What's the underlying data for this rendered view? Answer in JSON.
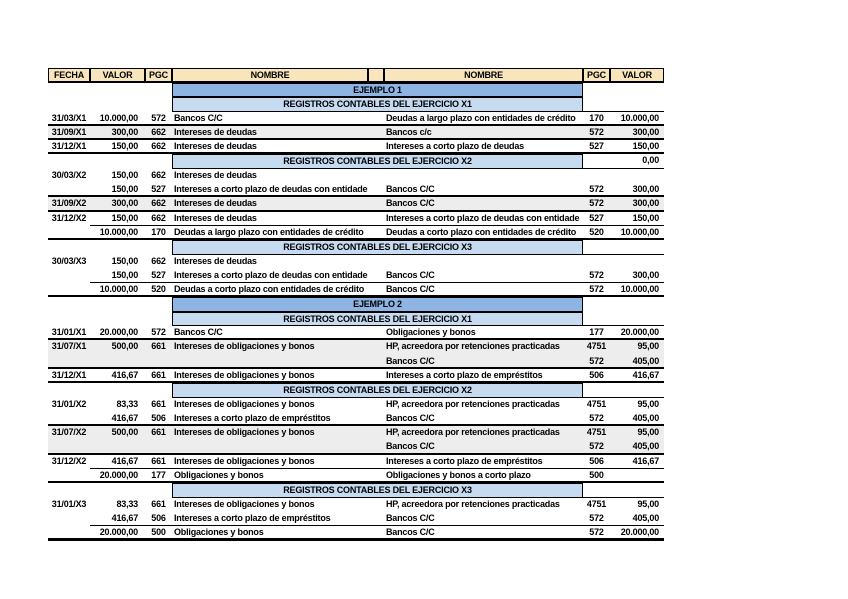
{
  "colors": {
    "header_bg": "#F8E5BC",
    "band_dark": "#8DB4E2",
    "band_light": "#C6DAF0",
    "row_shade": "#EDEDED",
    "border": "#000000",
    "page_bg": "#FFFFFF"
  },
  "table": {
    "columns": [
      "FECHA",
      "VALOR",
      "PGC",
      "NOMBRE",
      "",
      "NOMBRE",
      "PGC",
      "VALOR"
    ],
    "rows": [
      {
        "type": "band",
        "variant": "dark",
        "label": "EJEMPLO 1",
        "right_value": "",
        "right_border": false
      },
      {
        "type": "band",
        "variant": "light",
        "label": "REGISTROS CONTABLES DEL EJERCICIO X1",
        "right_value": "",
        "right_border": true
      },
      {
        "type": "entry",
        "cells": [
          "31/03/X1",
          "10.000,00",
          "572",
          "Bancos C/C",
          "Deudas a largo plazo con entidades de crédito",
          "170",
          "10.000,00"
        ],
        "shade": false,
        "border": "thick"
      },
      {
        "type": "entry",
        "cells": [
          "31/09/X1",
          "300,00",
          "662",
          "Intereses de deudas",
          "Bancos c/c",
          "572",
          "300,00"
        ],
        "shade": true,
        "border": "thick"
      },
      {
        "type": "entry",
        "cells": [
          "31/12/X1",
          "150,00",
          "662",
          "Intereses de deudas",
          "Intereses a corto plazo de deudas",
          "527",
          "150,00"
        ],
        "shade": false,
        "border": "thick"
      },
      {
        "type": "band",
        "variant": "light",
        "label": "REGISTROS CONTABLES DEL EJERCICIO X2",
        "right_value": "0,00",
        "right_border": true
      },
      {
        "type": "entry",
        "cells": [
          "30/03/X2",
          "150,00",
          "662",
          "Intereses de deudas",
          "",
          "",
          ""
        ],
        "shade": false,
        "border": "none"
      },
      {
        "type": "entry",
        "cells": [
          "",
          "150,00",
          "527",
          "Intereses a corto plazo de deudas con entidades",
          "Bancos C/C",
          "572",
          "300,00"
        ],
        "shade": false,
        "border": "thick"
      },
      {
        "type": "entry",
        "cells": [
          "31/09/X2",
          "300,00",
          "662",
          "Intereses de deudas",
          "Bancos C/C",
          "572",
          "300,00"
        ],
        "shade": true,
        "border": "thick"
      },
      {
        "type": "entry",
        "cells": [
          "31/12/X2",
          "150,00",
          "662",
          "Intereses de deudas",
          "Intereses a corto plazo de deudas con entidade",
          "527",
          "150,00"
        ],
        "shade": false,
        "border": "thin"
      },
      {
        "type": "entry",
        "cells": [
          "",
          "10.000,00",
          "170",
          "Deudas a largo plazo con entidades de crédito",
          "Deudas a corto plazo con entidades de crédito",
          "520",
          "10.000,00"
        ],
        "shade": false,
        "border": "thick"
      },
      {
        "type": "band",
        "variant": "light",
        "label": "REGISTROS CONTABLES DEL EJERCICIO X3",
        "right_value": "",
        "right_border": true
      },
      {
        "type": "entry",
        "cells": [
          "30/03/X3",
          "150,00",
          "662",
          "Intereses de deudas",
          "",
          "",
          ""
        ],
        "shade": false,
        "border": "none"
      },
      {
        "type": "entry",
        "cells": [
          "",
          "150,00",
          "527",
          "Intereses a corto plazo de deudas con entidades",
          "Bancos C/C",
          "572",
          "300,00"
        ],
        "shade": false,
        "border": "thin"
      },
      {
        "type": "entry",
        "cells": [
          "",
          "10.000,00",
          "520",
          "Deudas a corto plazo con entidades de crédito",
          "Bancos C/C",
          "572",
          "10.000,00"
        ],
        "shade": false,
        "border": "thick"
      },
      {
        "type": "band",
        "variant": "dark",
        "label": "EJEMPLO 2",
        "right_value": "",
        "right_border": false
      },
      {
        "type": "band",
        "variant": "light",
        "label": "REGISTROS CONTABLES DEL EJERCICIO X1",
        "right_value": "",
        "right_border": true
      },
      {
        "type": "entry",
        "cells": [
          "31/01/X1",
          "20.000,00",
          "572",
          "Bancos C/C",
          "Obligaciones y bonos",
          "177",
          "20.000,00"
        ],
        "shade": false,
        "border": "thick"
      },
      {
        "type": "entry",
        "cells": [
          "31/07/X1",
          "500,00",
          "661",
          "Intereses de obligaciones y bonos",
          "HP, acreedora por retenciones practicadas",
          "4751",
          "95,00"
        ],
        "shade": true,
        "border": "none"
      },
      {
        "type": "entry",
        "cells": [
          "",
          "",
          "",
          "",
          "Bancos C/C",
          "572",
          "405,00"
        ],
        "shade": true,
        "border": "thick"
      },
      {
        "type": "entry",
        "cells": [
          "31/12/X1",
          "416,67",
          "661",
          "Intereses de obligaciones y bonos",
          "Intereses a corto plazo de empréstitos",
          "506",
          "416,67"
        ],
        "shade": false,
        "border": "thick"
      },
      {
        "type": "band",
        "variant": "light",
        "label": "REGISTROS CONTABLES DEL EJERCICIO X2",
        "right_value": "",
        "right_border": true
      },
      {
        "type": "entry",
        "cells": [
          "31/01/X2",
          "83,33",
          "661",
          "Intereses de obligaciones y bonos",
          "HP, acreedora por retenciones practicadas",
          "4751",
          "95,00"
        ],
        "shade": false,
        "border": "none"
      },
      {
        "type": "entry",
        "cells": [
          "",
          "416,67",
          "506",
          "Intereses a corto plazo de empréstitos",
          "Bancos C/C",
          "572",
          "405,00"
        ],
        "shade": false,
        "border": "thick"
      },
      {
        "type": "entry",
        "cells": [
          "31/07/X2",
          "500,00",
          "661",
          "Intereses de obligaciones y bonos",
          "HP, acreedora por retenciones practicadas",
          "4751",
          "95,00"
        ],
        "shade": true,
        "border": "none"
      },
      {
        "type": "entry",
        "cells": [
          "",
          "",
          "",
          "",
          "Bancos C/C",
          "572",
          "405,00"
        ],
        "shade": true,
        "border": "thick"
      },
      {
        "type": "entry",
        "cells": [
          "31/12/X2",
          "416,67",
          "661",
          "Intereses de obligaciones y bonos",
          "Intereses a corto plazo de empréstitos",
          "506",
          "416,67"
        ],
        "shade": false,
        "border": "thin"
      },
      {
        "type": "entry",
        "cells": [
          "",
          "20.000,00",
          "177",
          "Obligaciones y bonos",
          "Obligaciones y bonos a corto plazo",
          "500",
          ""
        ],
        "shade": false,
        "border": "thick"
      },
      {
        "type": "band",
        "variant": "light",
        "label": "REGISTROS CONTABLES DEL EJERCICIO X3",
        "right_value": "",
        "right_border": true
      },
      {
        "type": "entry",
        "cells": [
          "31/01/X3",
          "83,33",
          "661",
          "Intereses de obligaciones y bonos",
          "HP, acreedora por retenciones practicadas",
          "4751",
          "95,00"
        ],
        "shade": false,
        "border": "none"
      },
      {
        "type": "entry",
        "cells": [
          "",
          "416,67",
          "506",
          "Intereses a corto plazo de empréstitos",
          "Bancos C/C",
          "572",
          "405,00"
        ],
        "shade": false,
        "border": "thin"
      },
      {
        "type": "entry",
        "cells": [
          "",
          "20.000,00",
          "500",
          "Obligaciones y bonos",
          "Bancos C/C",
          "572",
          "20.000,00"
        ],
        "shade": false,
        "border": "xthick"
      }
    ]
  }
}
